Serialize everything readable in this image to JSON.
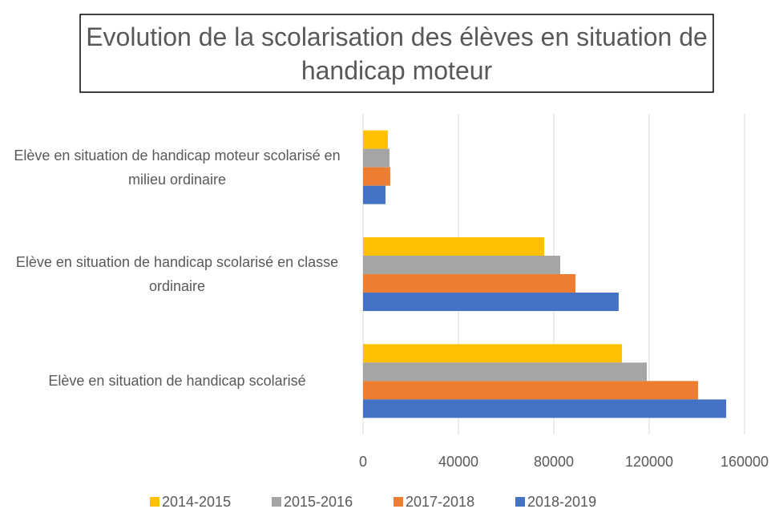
{
  "chart_data": {
    "type": "barh",
    "title": "Evolution de la scolarisation des élèves en situation de handicap moteur",
    "categories": [
      "Elève en situation de handicap moteur scolarisé en milieu ordinaire",
      "Elève en situation de handicap scolarisé en classe ordinaire",
      "Elève en situation de handicap scolarisé"
    ],
    "series": [
      {
        "name": "2014-2015",
        "color": "#FFC000",
        "values": [
          10400,
          76000,
          108600
        ]
      },
      {
        "name": "2015-2016",
        "color": "#A5A5A5",
        "values": [
          11100,
          82700,
          119000
        ]
      },
      {
        "name": "2017-2018",
        "color": "#ED7D31",
        "values": [
          11400,
          89100,
          140500
        ]
      },
      {
        "name": "2018-2019",
        "color": "#4472C4",
        "values": [
          9400,
          107200,
          152300
        ]
      }
    ],
    "xlim": [
      0,
      160000
    ],
    "xticks": [
      0,
      40000,
      80000,
      120000,
      160000
    ],
    "grid": true,
    "legend": "bottom"
  }
}
